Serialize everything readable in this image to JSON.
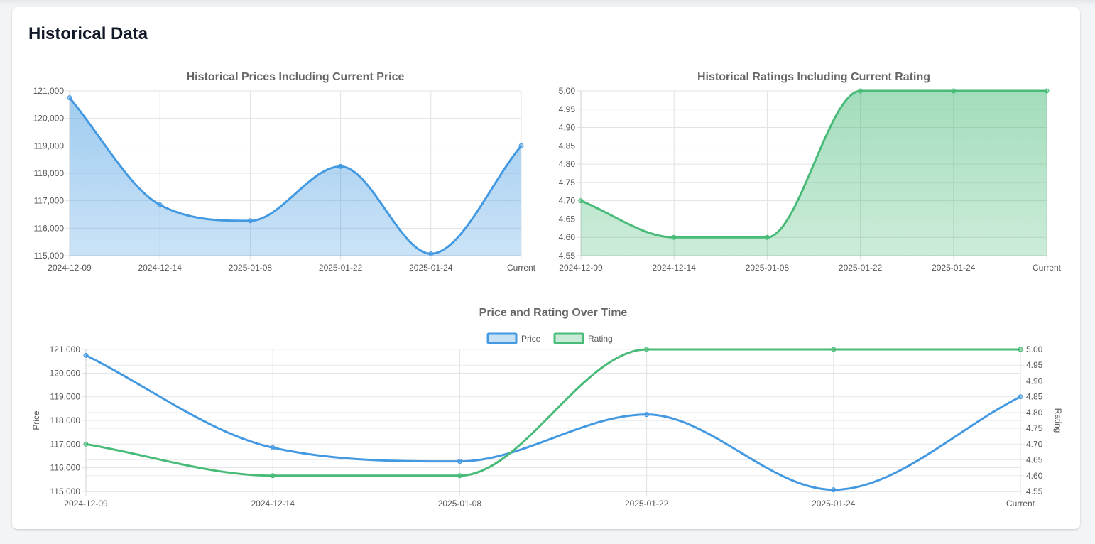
{
  "page": {
    "title": "Historical Data"
  },
  "colors": {
    "price": "#4299e1",
    "rating": "#48bb78"
  },
  "chart_data": [
    {
      "type": "area",
      "title": "Historical Prices Including Current Price",
      "categories": [
        "2024-12-09",
        "2024-12-14",
        "2025-01-08",
        "2025-01-22",
        "2025-01-24",
        "Current"
      ],
      "series": [
        {
          "values": [
            120750,
            116850,
            116270,
            118250,
            115070,
            119000
          ]
        }
      ],
      "ylim": [
        115000,
        121000
      ],
      "yticks": [
        115000,
        116000,
        117000,
        118000,
        119000,
        120000,
        121000
      ],
      "ytick_labels": [
        "115,000",
        "116,000",
        "117,000",
        "118,000",
        "119,000",
        "120,000",
        "121,000"
      ],
      "grid": true
    },
    {
      "type": "area",
      "title": "Historical Ratings Including Current Rating",
      "categories": [
        "2024-12-09",
        "2024-12-14",
        "2025-01-08",
        "2025-01-22",
        "2025-01-24",
        "Current"
      ],
      "series": [
        {
          "values": [
            4.7,
            4.6,
            4.6,
            5.0,
            5.0,
            5.0
          ]
        }
      ],
      "ylim": [
        4.55,
        5.0
      ],
      "yticks": [
        4.55,
        4.6,
        4.65,
        4.7,
        4.75,
        4.8,
        4.85,
        4.9,
        4.95,
        5.0
      ],
      "ytick_labels": [
        "4.55",
        "4.60",
        "4.65",
        "4.70",
        "4.75",
        "4.80",
        "4.85",
        "4.90",
        "4.95",
        "5.00"
      ],
      "grid": true
    },
    {
      "type": "line",
      "title": "Price and Rating Over Time",
      "categories": [
        "2024-12-09",
        "2024-12-14",
        "2025-01-08",
        "2025-01-22",
        "2025-01-24",
        "Current"
      ],
      "series": [
        {
          "name": "Price",
          "axis": "left",
          "values": [
            120750,
            116850,
            116270,
            118250,
            115070,
            119000
          ]
        },
        {
          "name": "Rating",
          "axis": "right",
          "values": [
            4.7,
            4.6,
            4.6,
            5.0,
            5.0,
            5.0
          ]
        }
      ],
      "ylabel": "Price",
      "y2label": "Rating",
      "ylim": [
        115000,
        121000
      ],
      "y2lim": [
        4.55,
        5.0
      ],
      "yticks": [
        115000,
        116000,
        117000,
        118000,
        119000,
        120000,
        121000
      ],
      "ytick_labels": [
        "115,000",
        "116,000",
        "117,000",
        "118,000",
        "119,000",
        "120,000",
        "121,000"
      ],
      "y2ticks": [
        4.55,
        4.6,
        4.65,
        4.7,
        4.75,
        4.8,
        4.85,
        4.9,
        4.95,
        5.0
      ],
      "y2tick_labels": [
        "4.55",
        "4.60",
        "4.65",
        "4.70",
        "4.75",
        "4.80",
        "4.85",
        "4.90",
        "4.95",
        "5.00"
      ],
      "legend": "top-center",
      "grid": true
    }
  ]
}
